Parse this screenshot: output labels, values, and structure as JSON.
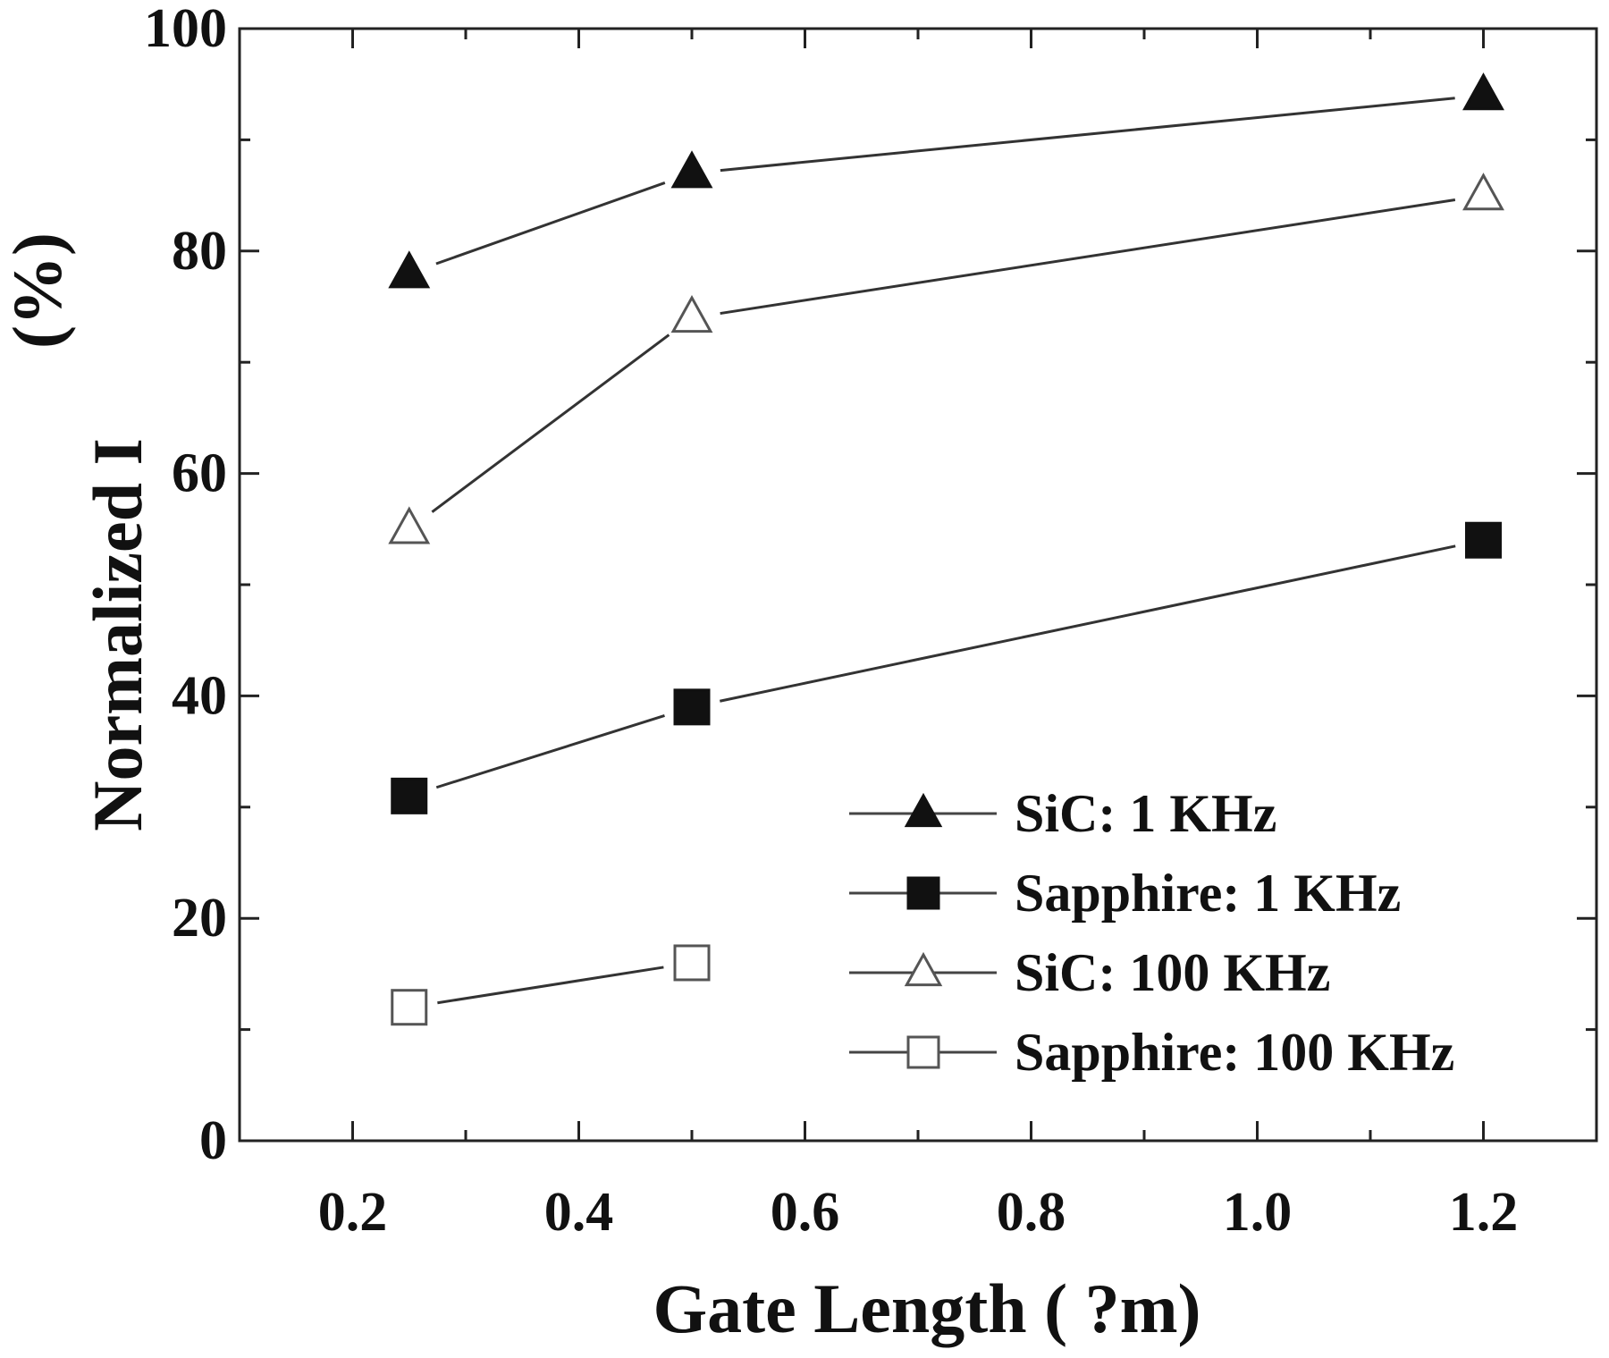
{
  "chart_data": {
    "type": "line",
    "xlabel": "Gate Length ( ?m)",
    "ylabel": "Normalized I",
    "ylabel_unit": "(%)",
    "xlim": [
      0.1,
      1.3
    ],
    "ylim": [
      0,
      100
    ],
    "x_tick_labels": [
      "0.2",
      "0.4",
      "0.6",
      "0.8",
      "1.0",
      "1.2"
    ],
    "y_tick_labels": [
      "0",
      "20",
      "40",
      "60",
      "80",
      "100"
    ],
    "x_categories": [
      0.25,
      0.5,
      1.2
    ],
    "legend_position": "bottom-right",
    "grid": false,
    "series": [
      {
        "name": "SiC: 1 KHz",
        "marker": "triangle-filled",
        "x": [
          0.25,
          0.5,
          1.2
        ],
        "values": [
          78,
          87,
          94
        ]
      },
      {
        "name": "Sapphire: 1 KHz",
        "marker": "square-filled",
        "x": [
          0.25,
          0.5,
          1.2
        ],
        "values": [
          31,
          39,
          54
        ]
      },
      {
        "name": "SiC: 100 KHz",
        "marker": "triangle-open",
        "x": [
          0.25,
          0.5,
          1.2
        ],
        "values": [
          55,
          74,
          85
        ]
      },
      {
        "name": "Sapphire: 100 KHz",
        "marker": "square-open",
        "x": [
          0.25,
          0.5
        ],
        "values": [
          12,
          16
        ]
      }
    ]
  }
}
